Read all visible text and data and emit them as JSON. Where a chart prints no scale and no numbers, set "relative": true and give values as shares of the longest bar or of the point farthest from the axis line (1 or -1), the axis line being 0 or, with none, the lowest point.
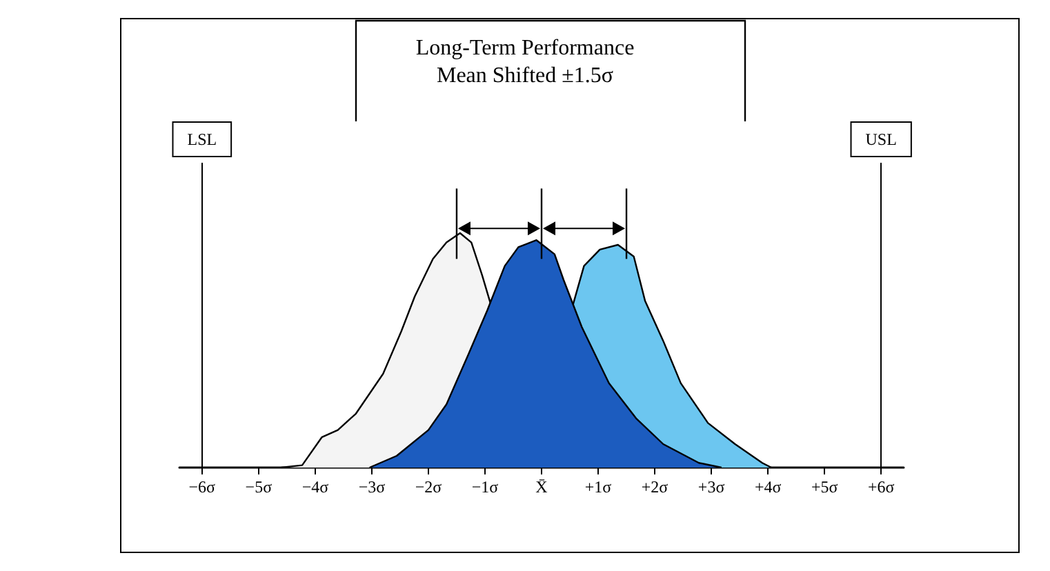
{
  "chart_data": {
    "type": "area",
    "title": "Long-Term Performance",
    "subtitle": "Mean Shifted ±1.5σ",
    "relative": true,
    "xlim": [
      -6.4,
      6.4
    ],
    "xticks": [
      {
        "value": -6,
        "label": "−6σ"
      },
      {
        "value": -5,
        "label": "−5σ"
      },
      {
        "value": -4,
        "label": "−4σ"
      },
      {
        "value": -3,
        "label": "−3σ"
      },
      {
        "value": -2,
        "label": "−2σ"
      },
      {
        "value": -1,
        "label": "−1σ"
      },
      {
        "value": 0,
        "label": "X̄"
      },
      {
        "value": 1,
        "label": "+1σ"
      },
      {
        "value": 2,
        "label": "+2σ"
      },
      {
        "value": 3,
        "label": "+3σ"
      },
      {
        "value": 4,
        "label": "+4σ"
      },
      {
        "value": 5,
        "label": "+5σ"
      },
      {
        "value": 6,
        "label": "+6σ"
      }
    ],
    "series": [
      {
        "color": "#6cc6f0",
        "x": [
          0.55,
          0.75,
          1.03,
          1.35,
          1.63,
          1.83,
          2.15,
          2.46,
          2.94,
          3.42,
          3.9,
          4.06
        ],
        "values": [
          0.69,
          0.86,
          0.93,
          0.95,
          0.9,
          0.71,
          0.54,
          0.36,
          0.19,
          0.1,
          0.02,
          0
        ]
      },
      {
        "color": "#f4f4f4",
        "x": [
          -4.6,
          -4.23,
          -3.88,
          -3.6,
          -3.28,
          -2.8,
          -2.48,
          -2.24,
          -1.92,
          -1.68,
          -1.44,
          -1.24,
          -1.05,
          -0.89
        ],
        "values": [
          0,
          0.01,
          0.13,
          0.16,
          0.23,
          0.4,
          0.58,
          0.73,
          0.89,
          0.96,
          1,
          0.96,
          0.82,
          0.69
        ]
      },
      {
        "color": "#1c5cbf",
        "x": [
          -3.04,
          -2.56,
          -2,
          -1.68,
          -1.28,
          -0.96,
          -0.65,
          -0.41,
          -0.09,
          0.23,
          0.39,
          0.71,
          1.19,
          1.67,
          2.15,
          2.78,
          3.18
        ],
        "values": [
          0,
          0.05,
          0.16,
          0.27,
          0.49,
          0.67,
          0.86,
          0.94,
          0.97,
          0.91,
          0.8,
          0.6,
          0.36,
          0.21,
          0.1,
          0.02,
          0
        ]
      }
    ],
    "ref_lines": [
      {
        "axis": "x",
        "value": -6,
        "label": "LSL"
      },
      {
        "axis": "x",
        "value": 6,
        "label": "USL"
      }
    ],
    "grid": false
  }
}
